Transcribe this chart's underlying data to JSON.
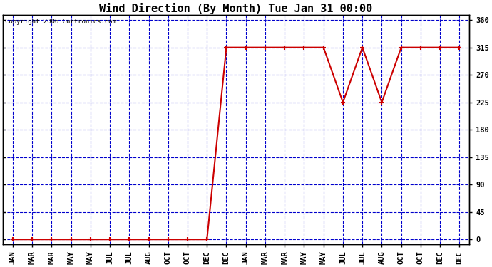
{
  "title": "Wind Direction (By Month) Tue Jan 31 00:00",
  "copyright": "Copyright 2006 Curtronics.com",
  "x_labels": [
    "JAN",
    "MAR",
    "MAR",
    "MAY",
    "MAY",
    "JUL",
    "JUL",
    "AUG",
    "OCT",
    "OCT",
    "DEC",
    "DEC",
    "JAN",
    "MAR",
    "MAR",
    "MAY",
    "MAY",
    "JUL",
    "JUL",
    "AUG",
    "OCT",
    "OCT",
    "DEC",
    "DEC"
  ],
  "y_values": [
    0,
    0,
    0,
    0,
    0,
    0,
    0,
    0,
    0,
    0,
    0,
    315,
    315,
    315,
    315,
    315,
    315,
    225,
    315,
    225,
    315,
    315,
    315,
    315
  ],
  "yticks": [
    0,
    45,
    90,
    135,
    180,
    225,
    270,
    315,
    360
  ],
  "line_color": "#cc0000",
  "marker": "+",
  "marker_color": "#cc0000",
  "bg_color": "#ffffff",
  "grid_color": "#0000cc",
  "axis_color": "#000000",
  "title_fontsize": 11,
  "tick_fontsize": 7.5,
  "copyright_fontsize": 6.5
}
